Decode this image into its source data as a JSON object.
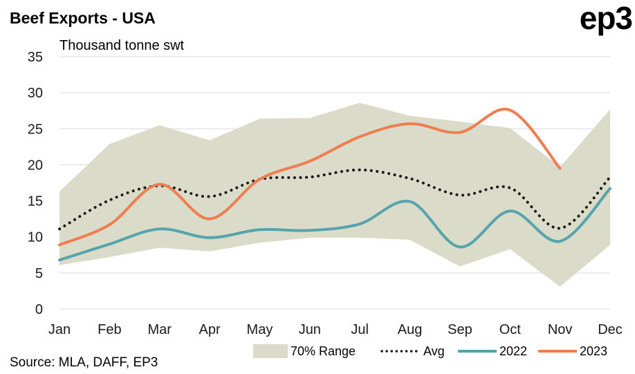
{
  "header": {
    "title": "Beef Exports - USA",
    "logo_text": "ep3"
  },
  "footer": {
    "source": "Source: MLA, DAFF, EP3"
  },
  "colors": {
    "range": "#dadbc8",
    "avg": "#1a1a1a",
    "s2022": "#55a3ab",
    "s2023": "#ef7d4f",
    "grid": "#d9d9d9",
    "text": "#1a1a1a"
  },
  "chart_data": {
    "type": "line",
    "title": "Beef Exports - USA",
    "ylabel": "Thousand tonne swt",
    "xlabel": "",
    "ylim": [
      0,
      35
    ],
    "yticks": [
      0,
      5,
      10,
      15,
      20,
      25,
      30,
      35
    ],
    "grid": true,
    "legend_position": "bottom-right",
    "categories": [
      "Jan",
      "Feb",
      "Mar",
      "Apr",
      "May",
      "Jun",
      "Jul",
      "Aug",
      "Sep",
      "Oct",
      "Nov",
      "Dec"
    ],
    "range": {
      "name": "70% Range",
      "upper": [
        16.3,
        22.9,
        25.5,
        23.4,
        26.4,
        26.5,
        28.6,
        26.8,
        26.0,
        25.1,
        19.7,
        27.7
      ],
      "lower": [
        6.1,
        7.2,
        8.5,
        8.0,
        9.2,
        9.9,
        9.9,
        9.6,
        5.9,
        8.3,
        3.1,
        8.9
      ]
    },
    "series": [
      {
        "name": "Avg",
        "style": "dotted",
        "values": [
          11.1,
          15.1,
          17.1,
          15.6,
          18.0,
          18.3,
          19.3,
          18.1,
          15.8,
          16.8,
          11.2,
          18.3
        ]
      },
      {
        "name": "2022",
        "style": "solid",
        "values": [
          6.8,
          9.0,
          11.1,
          9.9,
          11.0,
          10.9,
          11.8,
          14.9,
          8.6,
          13.6,
          9.4,
          16.7
        ]
      },
      {
        "name": "2023",
        "style": "solid",
        "values": [
          8.9,
          11.7,
          17.3,
          12.5,
          18.0,
          20.5,
          23.9,
          25.7,
          24.5,
          27.6,
          19.5,
          null
        ]
      }
    ]
  }
}
